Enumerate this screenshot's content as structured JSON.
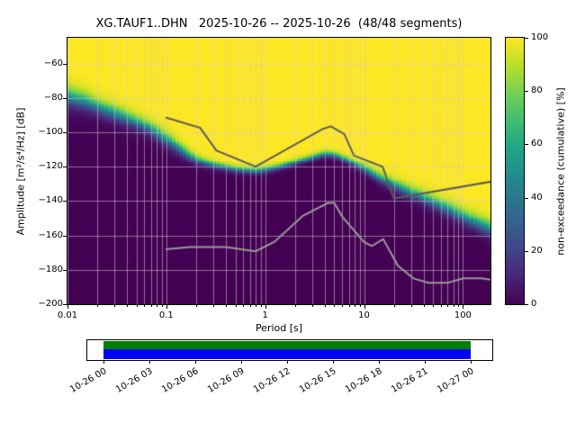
{
  "chart_data": {
    "type": "heatmap",
    "subtype": "ppsd-cumulative-spectrogram",
    "title": "XG.TAUF1..DHN   2025-10-26 -- 2025-10-26  (48/48 segments)",
    "xlabel": "Period [s]",
    "ylabel": "Amplitude [m²/s⁴/Hz] [dB]",
    "xscale": "log",
    "xlim": [
      0.01,
      190
    ],
    "ylim": [
      -200,
      -45
    ],
    "xticks": {
      "values": [
        0.01,
        0.1,
        1,
        10,
        100
      ],
      "labels": [
        "0.01",
        "0.1",
        "1",
        "10",
        "100"
      ]
    },
    "yticks": {
      "values": [
        -200,
        -180,
        -160,
        -140,
        -120,
        -100,
        -80,
        -60
      ],
      "labels": [
        "−200",
        "−180",
        "−160",
        "−140",
        "−120",
        "−100",
        "−80",
        "−60"
      ]
    },
    "grid": true,
    "colormap": "viridis",
    "colormap_stops": [
      "#440154",
      "#482475",
      "#414487",
      "#355f8d",
      "#2a788e",
      "#21918c",
      "#22a884",
      "#44bf70",
      "#7ad151",
      "#bddf26",
      "#fde725"
    ],
    "colorbar": {
      "label": "non-exceedance (cumulative) [%]",
      "min": 0,
      "max": 100,
      "ticks": [
        0,
        20,
        40,
        60,
        80,
        100
      ],
      "tick_labels": [
        "0",
        "20",
        "40",
        "60",
        "80",
        "100"
      ]
    },
    "period_bin_octaves": 0.125,
    "cumulative": {
      "description": "approx. 50% non-exceedance level (dB) vs period, with transition half-width (dB)",
      "periods": [
        0.01,
        0.015,
        0.02,
        0.03,
        0.05,
        0.07,
        0.1,
        0.14,
        0.2,
        0.3,
        0.5,
        0.8,
        1.2,
        2,
        3,
        4,
        5,
        7,
        10,
        14,
        20,
        30,
        50,
        80,
        120,
        190
      ],
      "median_db": [
        -79,
        -82,
        -85,
        -89,
        -94,
        -98,
        -104,
        -110,
        -116,
        -119,
        -121.5,
        -122.5,
        -121,
        -117.5,
        -114.5,
        -112.5,
        -113,
        -116.5,
        -121,
        -126,
        -130.5,
        -135,
        -140.5,
        -146,
        -151,
        -156
      ],
      "spread_db": [
        10,
        9,
        8,
        8,
        7,
        7,
        7,
        6,
        4.5,
        3.5,
        3,
        3,
        3,
        3,
        3,
        3,
        3,
        3.5,
        4,
        5,
        5.5,
        6,
        6.5,
        7,
        7.5,
        8
      ]
    },
    "noise_models": [
      {
        "name": "NHNM",
        "color": "#5c5c5c",
        "periods": [
          0.1,
          0.22,
          0.32,
          0.8,
          3.8,
          4.6,
          6.3,
          7.9,
          15.4,
          20,
          354.8
        ],
        "db": [
          -91.5,
          -97.4,
          -110.5,
          -120,
          -98.1,
          -96.5,
          -101,
          -113.5,
          -120,
          -138.5,
          -126
        ]
      },
      {
        "name": "NLNM",
        "color": "#999999",
        "periods": [
          0.1,
          0.17,
          0.4,
          0.8,
          1.24,
          2.4,
          4.3,
          5,
          6,
          10,
          12,
          15.6,
          21.9,
          31.6,
          45,
          70,
          101,
          154,
          328
        ],
        "db": [
          -168,
          -166.7,
          -166.7,
          -169.2,
          -163.7,
          -148.6,
          -141.1,
          -141.1,
          -149,
          -163.8,
          -166.2,
          -162.1,
          -177.5,
          -185,
          -187.5,
          -187.5,
          -185,
          -185,
          -187.5
        ]
      }
    ]
  },
  "coverage": {
    "tick_labels": [
      "10-26 00",
      "10-26 03",
      "10-26 06",
      "10-26 09",
      "10-26 12",
      "10-26 15",
      "10-26 18",
      "10-26 21",
      "10-27 00"
    ],
    "segment_color": "#008000",
    "data_color": "#0000ff",
    "frame_color": "#000000"
  }
}
